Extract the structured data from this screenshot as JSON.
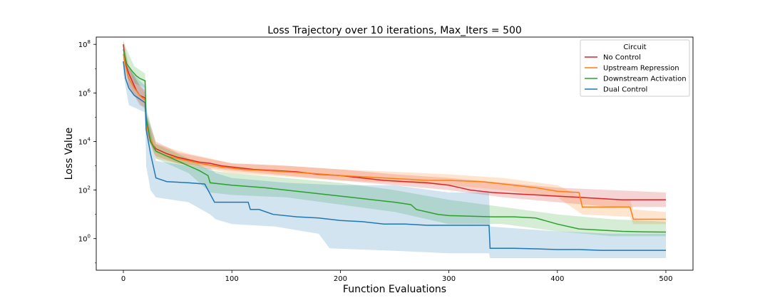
{
  "chart_data": {
    "type": "line",
    "title": "Loss Trajectory over 10 iterations, Max_Iters = 500",
    "xlabel": "Function Evaluations",
    "ylabel": "Loss Value",
    "xlim": [
      -25,
      525
    ],
    "ylim_log10": [
      -1.3,
      8.3
    ],
    "y_scale": "log",
    "x_ticks": [
      0,
      100,
      200,
      300,
      400,
      500
    ],
    "x_tick_labels": [
      "0",
      "100",
      "200",
      "300",
      "400",
      "500"
    ],
    "y_ticks_log10": [
      0,
      2,
      4,
      6,
      8
    ],
    "y_tick_bases": [
      "10",
      "10",
      "10",
      "10",
      "10"
    ],
    "y_tick_exponents": [
      "0",
      "2",
      "4",
      "6",
      "8"
    ],
    "grid": false,
    "legend": {
      "title": "Circuit",
      "placement": "top-right"
    },
    "series": [
      {
        "name": "No Control",
        "color": "#d62728",
        "points": [
          [
            0,
            8.0
          ],
          [
            2,
            7.2
          ],
          [
            5,
            6.8
          ],
          [
            8,
            6.5
          ],
          [
            12,
            6.1
          ],
          [
            15,
            5.9
          ],
          [
            20,
            5.8
          ],
          [
            21,
            4.8
          ],
          [
            25,
            4.0
          ],
          [
            30,
            3.7
          ],
          [
            40,
            3.5
          ],
          [
            50,
            3.35
          ],
          [
            60,
            3.25
          ],
          [
            70,
            3.15
          ],
          [
            80,
            3.1
          ],
          [
            90,
            3.0
          ],
          [
            100,
            2.95
          ],
          [
            120,
            2.85
          ],
          [
            140,
            2.8
          ],
          [
            160,
            2.75
          ],
          [
            180,
            2.65
          ],
          [
            200,
            2.6
          ],
          [
            220,
            2.5
          ],
          [
            240,
            2.4
          ],
          [
            260,
            2.35
          ],
          [
            280,
            2.3
          ],
          [
            300,
            2.2
          ],
          [
            310,
            2.1
          ],
          [
            320,
            2.0
          ],
          [
            340,
            1.9
          ],
          [
            360,
            1.85
          ],
          [
            380,
            1.8
          ],
          [
            400,
            1.75
          ],
          [
            420,
            1.7
          ],
          [
            440,
            1.65
          ],
          [
            460,
            1.6
          ],
          [
            480,
            1.6
          ],
          [
            500,
            1.6
          ]
        ],
        "band_low": [
          [
            0,
            7.5
          ],
          [
            5,
            6.3
          ],
          [
            15,
            5.5
          ],
          [
            20,
            5.4
          ],
          [
            21,
            4.3
          ],
          [
            30,
            3.4
          ],
          [
            50,
            3.1
          ],
          [
            100,
            2.8
          ],
          [
            150,
            2.6
          ],
          [
            200,
            2.4
          ],
          [
            250,
            2.2
          ],
          [
            300,
            2.0
          ],
          [
            350,
            1.7
          ],
          [
            400,
            1.5
          ],
          [
            450,
            1.3
          ],
          [
            500,
            1.3
          ]
        ],
        "band_high": [
          [
            0,
            8.2
          ],
          [
            5,
            7.1
          ],
          [
            15,
            6.3
          ],
          [
            20,
            6.1
          ],
          [
            21,
            5.2
          ],
          [
            30,
            4.0
          ],
          [
            50,
            3.55
          ],
          [
            100,
            3.1
          ],
          [
            150,
            3.0
          ],
          [
            200,
            2.85
          ],
          [
            250,
            2.65
          ],
          [
            300,
            2.5
          ],
          [
            350,
            2.3
          ],
          [
            400,
            2.1
          ],
          [
            450,
            2.0
          ],
          [
            500,
            1.9
          ]
        ]
      },
      {
        "name": "Upstream Repression",
        "color": "#ff7f0e",
        "points": [
          [
            0,
            7.6
          ],
          [
            2,
            7.1
          ],
          [
            5,
            6.6
          ],
          [
            10,
            6.2
          ],
          [
            15,
            5.9
          ],
          [
            20,
            5.7
          ],
          [
            21,
            4.7
          ],
          [
            25,
            4.1
          ],
          [
            30,
            3.6
          ],
          [
            40,
            3.4
          ],
          [
            50,
            3.3
          ],
          [
            70,
            3.1
          ],
          [
            90,
            2.95
          ],
          [
            110,
            2.85
          ],
          [
            130,
            2.8
          ],
          [
            150,
            2.75
          ],
          [
            170,
            2.7
          ],
          [
            200,
            2.6
          ],
          [
            220,
            2.55
          ],
          [
            240,
            2.5
          ],
          [
            260,
            2.45
          ],
          [
            280,
            2.4
          ],
          [
            300,
            2.4
          ],
          [
            330,
            2.35
          ],
          [
            340,
            2.3
          ],
          [
            360,
            2.2
          ],
          [
            380,
            2.1
          ],
          [
            400,
            1.95
          ],
          [
            420,
            1.9
          ],
          [
            423,
            1.3
          ],
          [
            440,
            1.3
          ],
          [
            467,
            1.3
          ],
          [
            470,
            0.8
          ],
          [
            490,
            0.8
          ],
          [
            500,
            0.8
          ]
        ],
        "band_low": [
          [
            0,
            7.3
          ],
          [
            5,
            6.2
          ],
          [
            20,
            5.3
          ],
          [
            21,
            4.3
          ],
          [
            30,
            3.3
          ],
          [
            60,
            3.0
          ],
          [
            100,
            2.7
          ],
          [
            150,
            2.55
          ],
          [
            200,
            2.4
          ],
          [
            250,
            2.3
          ],
          [
            300,
            2.2
          ],
          [
            350,
            2.0
          ],
          [
            400,
            1.7
          ],
          [
            423,
            1.0
          ],
          [
            467,
            0.9
          ],
          [
            470,
            0.6
          ],
          [
            500,
            0.6
          ]
        ],
        "band_high": [
          [
            0,
            8.0
          ],
          [
            5,
            7.0
          ],
          [
            20,
            6.0
          ],
          [
            21,
            5.0
          ],
          [
            30,
            3.9
          ],
          [
            60,
            3.5
          ],
          [
            100,
            3.1
          ],
          [
            150,
            3.0
          ],
          [
            200,
            2.85
          ],
          [
            250,
            2.75
          ],
          [
            300,
            2.65
          ],
          [
            350,
            2.5
          ],
          [
            400,
            2.2
          ],
          [
            423,
            1.7
          ],
          [
            467,
            1.6
          ],
          [
            470,
            1.2
          ],
          [
            500,
            1.1
          ]
        ]
      },
      {
        "name": "Downstream Activation",
        "color": "#2ca02c",
        "points": [
          [
            0,
            7.8
          ],
          [
            3,
            7.2
          ],
          [
            8,
            6.9
          ],
          [
            12,
            6.7
          ],
          [
            15,
            6.6
          ],
          [
            20,
            6.5
          ],
          [
            21,
            5.0
          ],
          [
            25,
            4.0
          ],
          [
            30,
            3.6
          ],
          [
            40,
            3.4
          ],
          [
            50,
            3.2
          ],
          [
            60,
            3.0
          ],
          [
            70,
            2.8
          ],
          [
            78,
            2.6
          ],
          [
            80,
            2.3
          ],
          [
            100,
            2.2
          ],
          [
            130,
            2.1
          ],
          [
            150,
            2.0
          ],
          [
            170,
            1.9
          ],
          [
            190,
            1.8
          ],
          [
            210,
            1.7
          ],
          [
            230,
            1.6
          ],
          [
            250,
            1.5
          ],
          [
            265,
            1.4
          ],
          [
            270,
            1.2
          ],
          [
            290,
            1.0
          ],
          [
            300,
            0.95
          ],
          [
            340,
            0.9
          ],
          [
            360,
            0.9
          ],
          [
            380,
            0.85
          ],
          [
            400,
            0.6
          ],
          [
            420,
            0.4
          ],
          [
            440,
            0.35
          ],
          [
            460,
            0.3
          ],
          [
            480,
            0.28
          ],
          [
            500,
            0.27
          ]
        ],
        "band_low": [
          [
            0,
            7.5
          ],
          [
            10,
            6.4
          ],
          [
            20,
            6.2
          ],
          [
            21,
            4.6
          ],
          [
            30,
            3.3
          ],
          [
            60,
            2.7
          ],
          [
            80,
            1.9
          ],
          [
            100,
            1.8
          ],
          [
            150,
            1.7
          ],
          [
            200,
            1.4
          ],
          [
            250,
            1.1
          ],
          [
            300,
            0.6
          ],
          [
            350,
            0.6
          ],
          [
            400,
            0.3
          ],
          [
            450,
            0.1
          ],
          [
            500,
            0.1
          ]
        ],
        "band_high": [
          [
            0,
            8.1
          ],
          [
            10,
            7.1
          ],
          [
            20,
            6.8
          ],
          [
            21,
            5.4
          ],
          [
            30,
            3.9
          ],
          [
            60,
            3.3
          ],
          [
            80,
            2.8
          ],
          [
            100,
            2.7
          ],
          [
            150,
            2.5
          ],
          [
            200,
            2.3
          ],
          [
            250,
            2.0
          ],
          [
            300,
            1.6
          ],
          [
            350,
            1.3
          ],
          [
            400,
            1.0
          ],
          [
            450,
            0.8
          ],
          [
            500,
            0.7
          ]
        ]
      },
      {
        "name": "Dual Control",
        "color": "#1f77b4",
        "points": [
          [
            0,
            7.3
          ],
          [
            2,
            6.6
          ],
          [
            5,
            6.2
          ],
          [
            10,
            5.9
          ],
          [
            15,
            5.75
          ],
          [
            20,
            5.6
          ],
          [
            21,
            4.5
          ],
          [
            25,
            3.5
          ],
          [
            30,
            2.5
          ],
          [
            40,
            2.35
          ],
          [
            60,
            2.3
          ],
          [
            75,
            2.25
          ],
          [
            84,
            1.5
          ],
          [
            100,
            1.5
          ],
          [
            115,
            1.5
          ],
          [
            117,
            1.2
          ],
          [
            125,
            1.2
          ],
          [
            138,
            1.0
          ],
          [
            160,
            0.9
          ],
          [
            180,
            0.85
          ],
          [
            200,
            0.75
          ],
          [
            220,
            0.7
          ],
          [
            240,
            0.6
          ],
          [
            260,
            0.6
          ],
          [
            280,
            0.55
          ],
          [
            300,
            0.55
          ],
          [
            320,
            0.55
          ],
          [
            337,
            0.55
          ],
          [
            338,
            -0.4
          ],
          [
            360,
            -0.4
          ],
          [
            380,
            -0.42
          ],
          [
            400,
            -0.45
          ],
          [
            420,
            -0.45
          ],
          [
            440,
            -0.48
          ],
          [
            460,
            -0.48
          ],
          [
            480,
            -0.48
          ],
          [
            500,
            -0.48
          ]
        ],
        "band_low": [
          [
            0,
            6.8
          ],
          [
            5,
            5.5
          ],
          [
            15,
            5.3
          ],
          [
            20,
            5.2
          ],
          [
            21,
            3.0
          ],
          [
            25,
            2.0
          ],
          [
            30,
            1.7
          ],
          [
            60,
            1.5
          ],
          [
            80,
            1.0
          ],
          [
            85,
            0.8
          ],
          [
            100,
            0.6
          ],
          [
            140,
            0.5
          ],
          [
            180,
            0.2
          ],
          [
            190,
            -0.4
          ],
          [
            250,
            -0.5
          ],
          [
            300,
            -0.6
          ],
          [
            337,
            -0.6
          ],
          [
            338,
            -0.8
          ],
          [
            400,
            -0.8
          ],
          [
            500,
            -0.8
          ]
        ],
        "band_high": [
          [
            0,
            7.7
          ],
          [
            5,
            7.0
          ],
          [
            15,
            6.5
          ],
          [
            20,
            6.3
          ],
          [
            21,
            5.2
          ],
          [
            25,
            4.5
          ],
          [
            30,
            3.2
          ],
          [
            60,
            3.0
          ],
          [
            80,
            2.9
          ],
          [
            85,
            2.7
          ],
          [
            100,
            2.5
          ],
          [
            150,
            2.3
          ],
          [
            200,
            2.2
          ],
          [
            250,
            2.2
          ],
          [
            300,
            1.9
          ],
          [
            337,
            1.9
          ],
          [
            338,
            0.5
          ],
          [
            400,
            0.3
          ],
          [
            450,
            0.2
          ],
          [
            500,
            0.2
          ]
        ]
      }
    ]
  }
}
